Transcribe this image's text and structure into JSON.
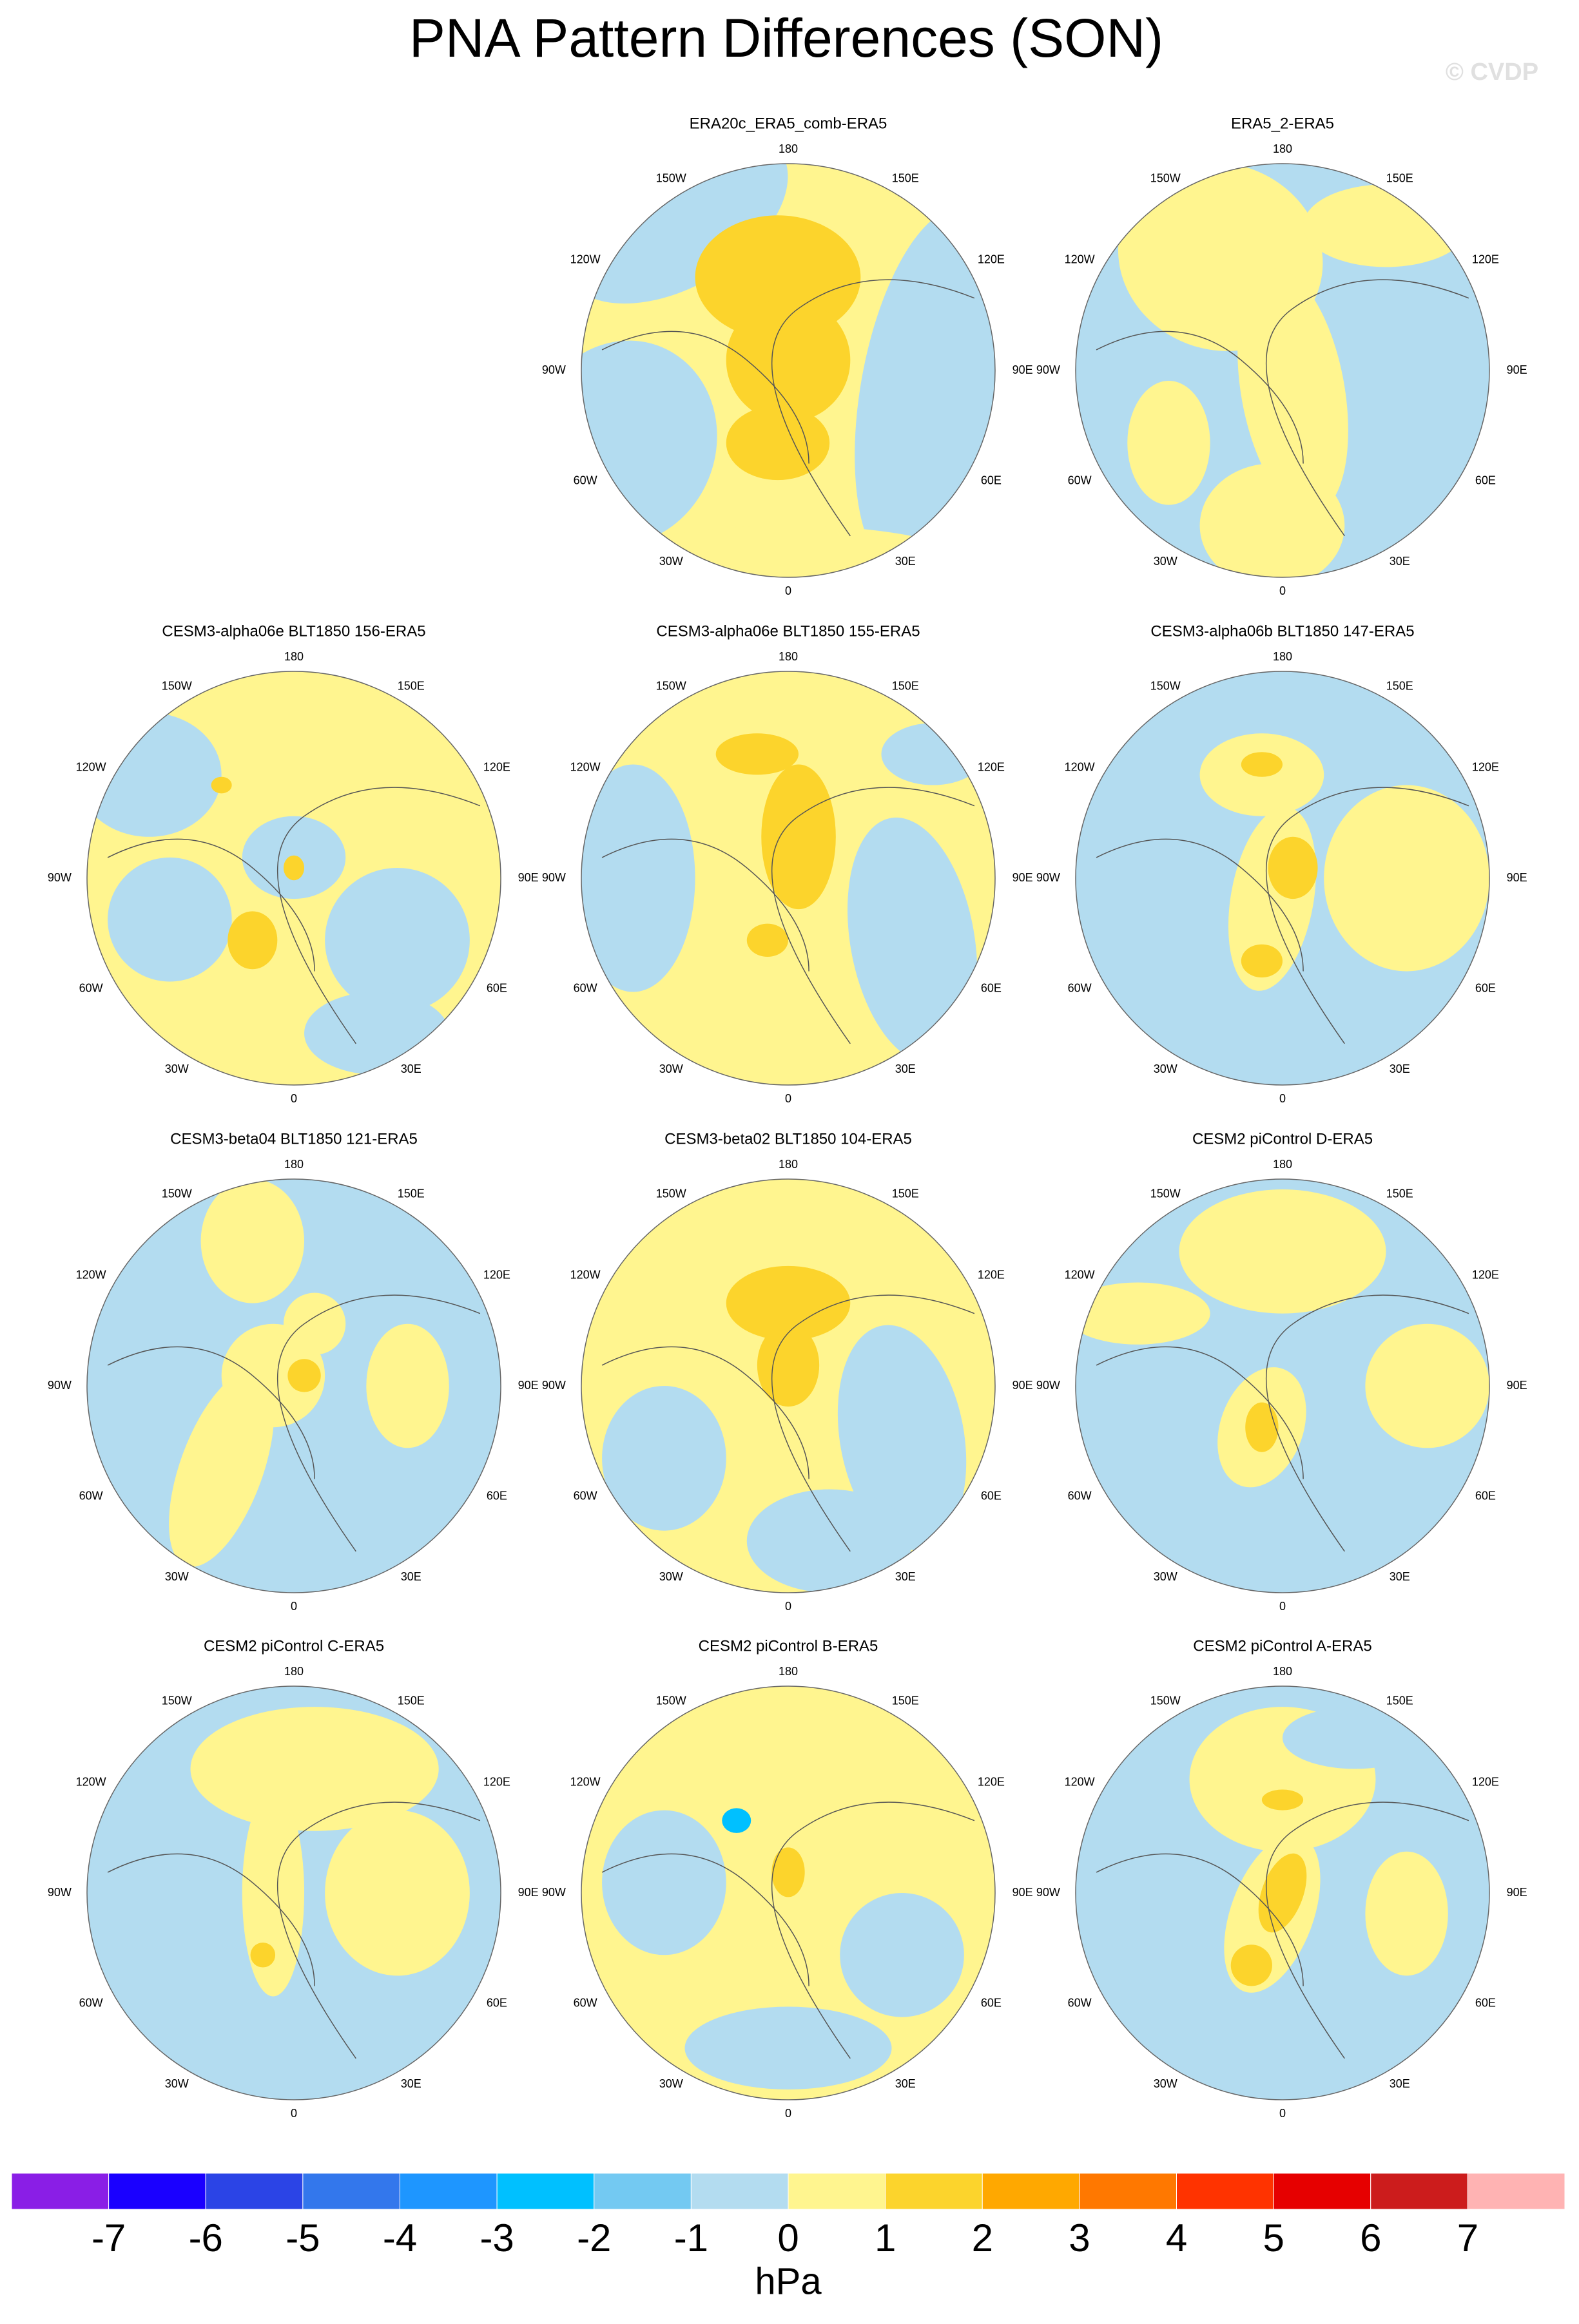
{
  "title": "PNA Pattern Differences (SON)",
  "watermark": "© CVDP",
  "panels": [
    {
      "title": "ERA20c_ERA5_comb-ERA5"
    },
    {
      "title": "ERA5_2-ERA5"
    },
    {
      "title": "CESM3-alpha06e BLT1850 156-ERA5"
    },
    {
      "title": "CESM3-alpha06e BLT1850 155-ERA5"
    },
    {
      "title": "CESM3-alpha06b BLT1850 147-ERA5"
    },
    {
      "title": "CESM3-beta04 BLT1850 121-ERA5"
    },
    {
      "title": "CESM3-beta02 BLT1850 104-ERA5"
    },
    {
      "title": "CESM2 piControl D-ERA5"
    },
    {
      "title": "CESM2 piControl C-ERA5"
    },
    {
      "title": "CESM2 piControl B-ERA5"
    },
    {
      "title": "CESM2 piControl A-ERA5"
    }
  ],
  "longitude_labels": [
    "0",
    "30E",
    "60E",
    "90E",
    "120E",
    "150E",
    "180",
    "150W",
    "120W",
    "90W",
    "60W",
    "30W"
  ],
  "colorbar": {
    "levels": [
      -7,
      -6,
      -5,
      -4,
      -3,
      -2,
      -1,
      0,
      1,
      2,
      3,
      4,
      5,
      6,
      7
    ],
    "colors": [
      "#8a1ee6",
      "#1a00ff",
      "#2b44e6",
      "#3377ec",
      "#1e96ff",
      "#00c0ff",
      "#73c9f2",
      "#b3dcf0",
      "#fff58f",
      "#fcd42c",
      "#ffa800",
      "#ff7800",
      "#ff3300",
      "#e60000",
      "#cc1c1c",
      "#ffb3b3"
    ],
    "units": "hPa"
  }
}
